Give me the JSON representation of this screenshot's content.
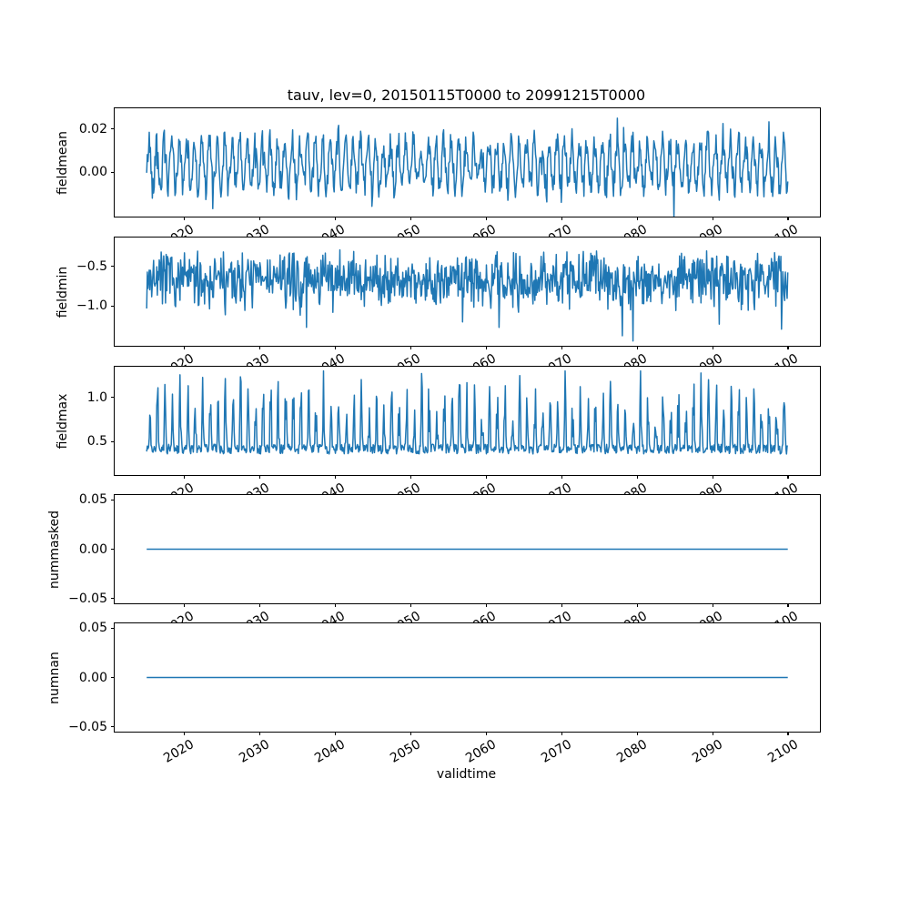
{
  "chart_data": {
    "type": "line",
    "title": "tauv, lev=0, 20150115T0000 to 20991215T0000",
    "line_color": "#1f77b4",
    "background_color": "#ffffff",
    "x_axis": {
      "label": "validtime",
      "lim": [
        2010.8,
        2104.21
      ],
      "ticks": [
        2020,
        2030,
        2040,
        2050,
        2060,
        2070,
        2080,
        2090,
        2100
      ],
      "tick_labels": [
        "2020",
        "2030",
        "2040",
        "2050",
        "2060",
        "2070",
        "2080",
        "2090",
        "2100"
      ],
      "tick_label_rotation_deg": 30,
      "data_start": 2015.0417,
      "data_end": 2099.9583,
      "points_per_series": 1020
    },
    "panels": [
      {
        "ylabel": "fieldmean",
        "ylim": [
          -0.0204,
          0.0296
        ],
        "yticks": [
          {
            "value": 0.0,
            "label": "0.00"
          },
          {
            "value": 0.02,
            "label": "0.02"
          }
        ],
        "series": {
          "kind": "seasonal",
          "seed": 42,
          "base": 0.0035,
          "amp": 0.0105,
          "phase": 0.12,
          "noise": 0.0062,
          "spike_prob": 0.05,
          "spike": 0.0075
        }
      },
      {
        "ylabel": "fieldmin",
        "ylim": [
          -1.5,
          -0.136
        ],
        "yticks": [
          {
            "value": -0.5,
            "label": "−0.5"
          },
          {
            "value": -1.0,
            "label": "−1.0"
          }
        ],
        "series": {
          "kind": "noisy",
          "seed": 7,
          "base": -0.66,
          "spread": 0.4,
          "dip_prob": 0.02,
          "dip": 0.5,
          "max": -0.26,
          "min": -1.44
        }
      },
      {
        "ylabel": "fieldmax",
        "ylim": [
          0.122,
          1.347
        ],
        "yticks": [
          {
            "value": 0.5,
            "label": "0.5"
          },
          {
            "value": 1.0,
            "label": "1.0"
          }
        ],
        "series": {
          "kind": "spiky",
          "seed": 99,
          "base": 0.36,
          "jitter": 0.11,
          "phase": 0.22,
          "thresh": 0.42,
          "spike_min": 0.12,
          "spike_var": 0.78,
          "max": 1.3
        }
      },
      {
        "ylabel": "nummasked",
        "ylim": [
          -0.055,
          0.055
        ],
        "yticks": [
          {
            "value": -0.05,
            "label": "−0.05"
          },
          {
            "value": 0.0,
            "label": "0.00"
          },
          {
            "value": 0.05,
            "label": "0.05"
          }
        ],
        "series": {
          "kind": "const",
          "value": 0.0
        }
      },
      {
        "ylabel": "numnan",
        "ylim": [
          -0.055,
          0.055
        ],
        "yticks": [
          {
            "value": -0.05,
            "label": "−0.05"
          },
          {
            "value": 0.0,
            "label": "0.00"
          },
          {
            "value": 0.05,
            "label": "0.05"
          }
        ],
        "series": {
          "kind": "const",
          "value": 0.0
        }
      }
    ]
  }
}
